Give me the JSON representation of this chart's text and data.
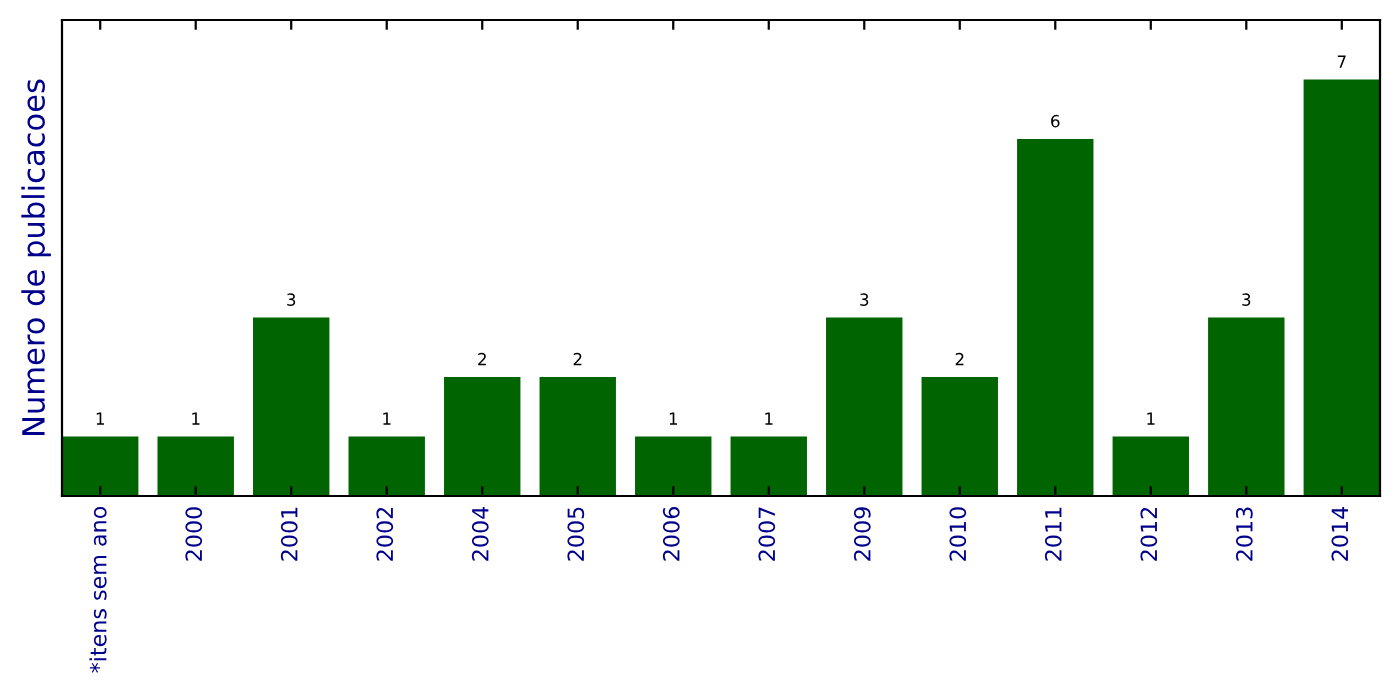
{
  "chart_data": {
    "type": "bar",
    "ylabel": "Numero de publicacoes",
    "categories": [
      "*itens sem ano",
      "2000",
      "2001",
      "2002",
      "2004",
      "2005",
      "2006",
      "2007",
      "2009",
      "2010",
      "2011",
      "2012",
      "2013",
      "2014"
    ],
    "values": [
      1,
      1,
      3,
      1,
      2,
      2,
      1,
      1,
      3,
      2,
      6,
      1,
      3,
      7
    ],
    "color": "#006400",
    "ylim": [
      0,
      8
    ],
    "data_labels": true,
    "grid": false,
    "legend": false,
    "tick_labels": "x"
  }
}
